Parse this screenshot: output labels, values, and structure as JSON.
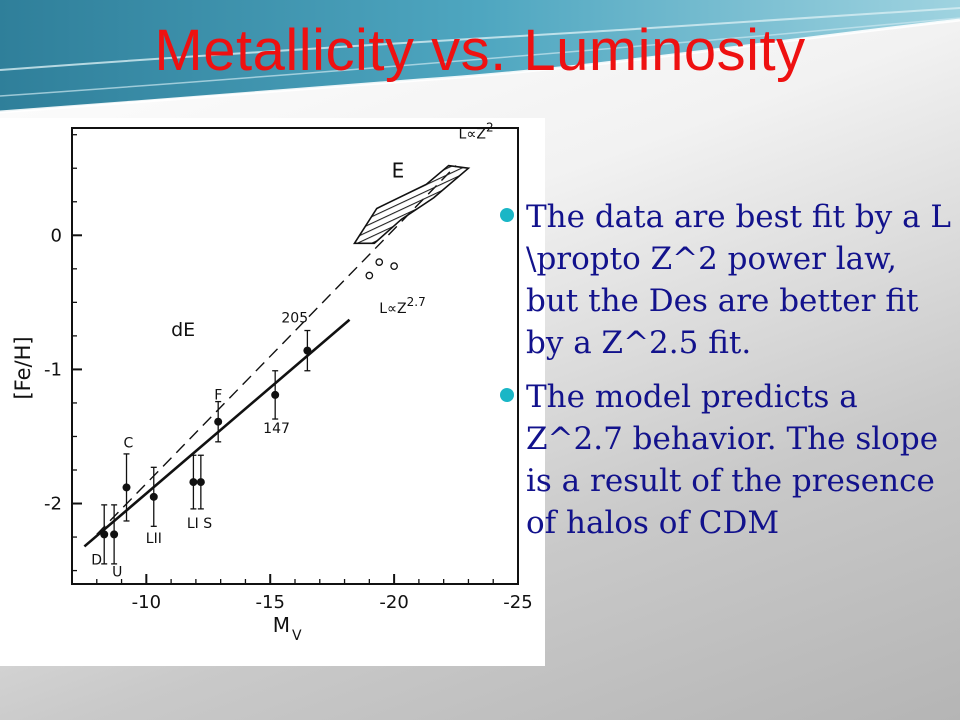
{
  "slide": {
    "title": "Metallicity vs. Luminosity",
    "bullets": [
      "The data are best fit by a L \\propto Z^2 power law, but the Des are better fit by a Z^2.5 fit.",
      "The model predicts a Z^2.7 behavior.  The slope is a result of the presence of halos of CDM"
    ],
    "colors": {
      "title": "#ee1111",
      "text": "#12128c",
      "bullet": "#1ab6c6"
    }
  },
  "chart_data": {
    "type": "scatter",
    "title": "",
    "xlabel": "M",
    "xlabel_sub": "V",
    "ylabel": "[Fe/H]",
    "xlim": [
      -7,
      -25
    ],
    "ylim": [
      -2.6,
      0.8
    ],
    "x_ticks": [
      -10,
      -15,
      -20,
      -25
    ],
    "x_tick_labels": [
      "-10",
      "-15",
      "-20",
      "-25"
    ],
    "y_ticks": [
      0,
      -1,
      -2
    ],
    "y_tick_labels": [
      "0",
      "-1",
      "-2"
    ],
    "series": [
      {
        "points": [
          {
            "x": -8.3,
            "y": -2.23,
            "err": 0.22,
            "label": "D"
          },
          {
            "x": -8.7,
            "y": -2.23,
            "err": 0.22,
            "label": "U"
          },
          {
            "x": -9.2,
            "y": -1.88,
            "err": 0.25,
            "label": "C"
          },
          {
            "x": -10.3,
            "y": -1.95,
            "err": 0.22,
            "label": "LII"
          },
          {
            "x": -11.9,
            "y": -1.84,
            "err": 0.2,
            "label": ""
          },
          {
            "x": -12.2,
            "y": -1.84,
            "err": 0.2,
            "label": "LI S"
          },
          {
            "x": -12.9,
            "y": -1.39,
            "err": 0.15,
            "label": "F"
          },
          {
            "x": -15.2,
            "y": -1.19,
            "err": 0.18,
            "label": "147"
          },
          {
            "x": -16.5,
            "y": -0.86,
            "err": 0.15,
            "label": "205"
          }
        ]
      }
    ],
    "open_points": [
      {
        "x": -19.0,
        "y": -0.3
      },
      {
        "x": -19.4,
        "y": -0.2
      },
      {
        "x": -20.0,
        "y": -0.23
      }
    ],
    "fits": [
      {
        "label": "L∝Z",
        "exponent": "2",
        "style": "dashed",
        "from": [
          -8,
          -2.23
        ],
        "to": [
          -22.5,
          0.52
        ]
      },
      {
        "label": "L∝Z",
        "exponent": "2.7",
        "style": "solid",
        "from": [
          -7.5,
          -2.32
        ],
        "to": [
          -18.2,
          -0.63
        ]
      }
    ],
    "region": {
      "label": "E",
      "polygon": [
        [
          -18.4,
          -0.06
        ],
        [
          -19.3,
          0.2
        ],
        [
          -21.3,
          0.38
        ],
        [
          -22.2,
          0.52
        ],
        [
          -23.0,
          0.5
        ],
        [
          -21.6,
          0.28
        ],
        [
          -20.3,
          0.12
        ],
        [
          -19.2,
          -0.06
        ]
      ]
    },
    "text_labels": [
      {
        "text": "dE",
        "x": -11.0,
        "y": -0.75
      }
    ],
    "grid": false,
    "legend": "none"
  }
}
